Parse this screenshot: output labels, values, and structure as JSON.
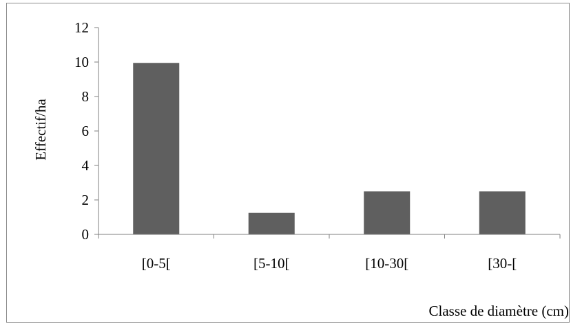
{
  "colors": {
    "bar": "#5f5f5f",
    "axis": "#7f7f7f",
    "text": "#000000"
  },
  "chart_data": {
    "type": "bar",
    "categories": [
      "[0-5[",
      "[5-10[",
      "[10-30[",
      "[30-["
    ],
    "values": [
      9.95,
      1.25,
      2.5,
      2.5
    ],
    "xlabel": "Classe de diamètre (cm)",
    "ylabel": "Effectif/ha",
    "ylim": [
      0,
      12
    ],
    "yticks": [
      0,
      2,
      4,
      6,
      8,
      10,
      12
    ],
    "grid": false,
    "legend": "none"
  }
}
